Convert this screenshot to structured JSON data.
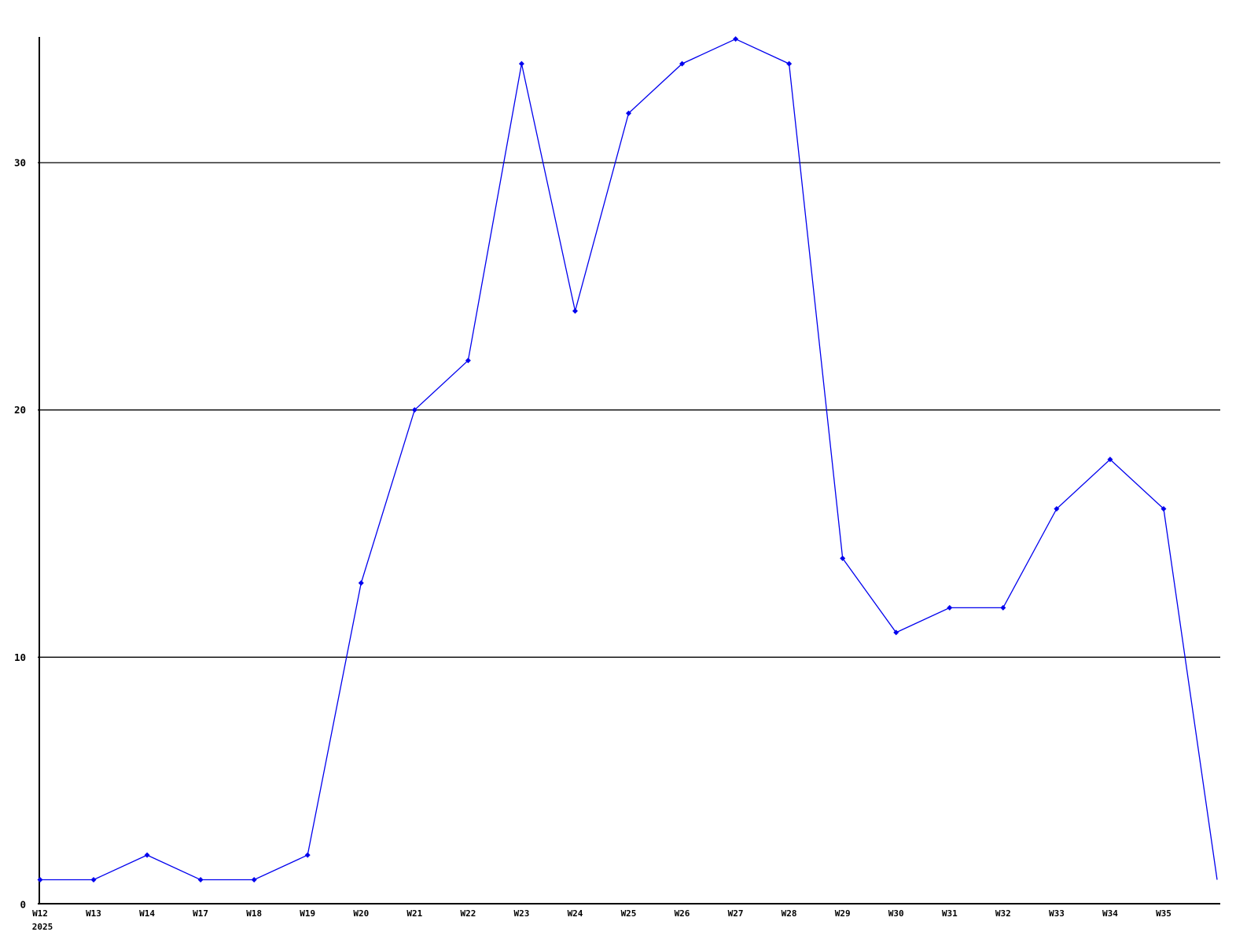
{
  "chart_data": {
    "type": "line",
    "title": "",
    "x_tick_labels": [
      "W12",
      "W13",
      "W14",
      "W17",
      "W18",
      "W19",
      "W20",
      "W21",
      "W22",
      "W23",
      "W24",
      "W25",
      "W26",
      "W27",
      "W28",
      "W29",
      "W30",
      "W31",
      "W32",
      "W33",
      "W34",
      "W35",
      ""
    ],
    "x_axis_year_label": "2025",
    "values": [
      1,
      1,
      2,
      1,
      1,
      2,
      13,
      20,
      22,
      34,
      24,
      32,
      34,
      35,
      34,
      14,
      11,
      12,
      12,
      16,
      18,
      16,
      1
    ],
    "y_ticks": [
      0,
      10,
      20,
      30
    ],
    "y_tick_labels": [
      "0",
      "10",
      "20",
      "30"
    ],
    "ylim": [
      0,
      35
    ],
    "grid": "horizontal",
    "legend_position": "none",
    "marker": "diamond",
    "marker_on_unlabeled_trailing_point": false,
    "line_color": "#0000ee",
    "axis_color": "#000000",
    "background_color": "#ffffff"
  }
}
